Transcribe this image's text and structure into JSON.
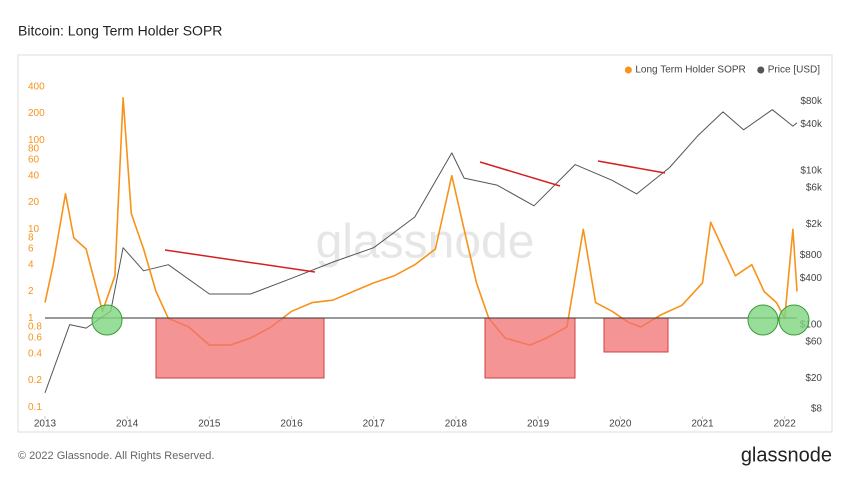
{
  "chart_data": {
    "type": "line",
    "title": "Bitcoin: Long Term Holder SOPR",
    "watermark": "glassnode",
    "footer": "© 2022 Glassnode. All Rights Reserved.",
    "brand": "glassnode",
    "log_scale": true,
    "legend_position": "top-right",
    "xlim": [
      2013,
      2022.15
    ],
    "xticks": [
      2013,
      2014,
      2015,
      2016,
      2017,
      2018,
      2019,
      2020,
      2021,
      2022
    ],
    "ylim": [
      0.08,
      500
    ],
    "yticks": [
      400,
      200,
      100,
      80,
      60,
      40,
      20,
      10,
      8,
      6,
      4,
      2,
      1,
      0.8,
      0.6,
      0.4,
      0.2,
      0.1
    ],
    "y2lim": [
      6.5,
      160000
    ],
    "y2ticks": [
      {
        "value": 80000,
        "label": "$80k"
      },
      {
        "value": 40000,
        "label": "$40k"
      },
      {
        "value": 10000,
        "label": "$10k"
      },
      {
        "value": 6000,
        "label": "$6k"
      },
      {
        "value": 2000,
        "label": "$2k"
      },
      {
        "value": 800,
        "label": "$800"
      },
      {
        "value": 400,
        "label": "$400"
      },
      {
        "value": 100,
        "label": "$100"
      },
      {
        "value": 60,
        "label": "$60"
      },
      {
        "value": 20,
        "label": "$20"
      },
      {
        "value": 8,
        "label": "$8"
      }
    ],
    "series": [
      {
        "name": "Long Term Holder SOPR",
        "color": "#f7931a",
        "x": [
          2013.0,
          2013.1,
          2013.25,
          2013.35,
          2013.5,
          2013.7,
          2013.85,
          2013.95,
          2014.05,
          2014.2,
          2014.35,
          2014.5,
          2014.75,
          2015.0,
          2015.25,
          2015.5,
          2015.75,
          2016.0,
          2016.25,
          2016.5,
          2016.75,
          2017.0,
          2017.25,
          2017.5,
          2017.75,
          2017.95,
          2018.1,
          2018.25,
          2018.4,
          2018.6,
          2018.9,
          2019.1,
          2019.35,
          2019.55,
          2019.7,
          2019.9,
          2020.1,
          2020.25,
          2020.5,
          2020.75,
          2021.0,
          2021.1,
          2021.25,
          2021.4,
          2021.6,
          2021.75,
          2021.9,
          2022.0,
          2022.1,
          2022.15
        ],
        "values": [
          1.5,
          4,
          25,
          8,
          6,
          1.2,
          3,
          300,
          15,
          6,
          2,
          1,
          0.8,
          0.5,
          0.5,
          0.6,
          0.8,
          1.2,
          1.5,
          1.6,
          2,
          2.5,
          3,
          4,
          6,
          40,
          10,
          2.5,
          1,
          0.6,
          0.5,
          0.6,
          0.8,
          10,
          1.5,
          1.2,
          0.9,
          0.8,
          1.1,
          1.4,
          2.5,
          12,
          6,
          3,
          4,
          2,
          1.5,
          1,
          10,
          2
        ]
      },
      {
        "name": "Price [USD]",
        "color": "#555555",
        "axis": "y2",
        "x": [
          2013.0,
          2013.3,
          2013.5,
          2013.8,
          2013.95,
          2014.2,
          2014.5,
          2015.0,
          2015.5,
          2016.0,
          2016.5,
          2017.0,
          2017.5,
          2017.95,
          2018.1,
          2018.5,
          2018.95,
          2019.45,
          2019.9,
          2020.2,
          2020.6,
          2020.95,
          2021.25,
          2021.5,
          2021.85,
          2022.1,
          2022.15
        ],
        "values": [
          13,
          100,
          90,
          150,
          1000,
          500,
          600,
          250,
          250,
          400,
          650,
          1000,
          2500,
          17000,
          8000,
          6500,
          3500,
          12000,
          7500,
          5000,
          11000,
          29000,
          58000,
          34000,
          62000,
          38000,
          42000
        ]
      }
    ]
  }
}
